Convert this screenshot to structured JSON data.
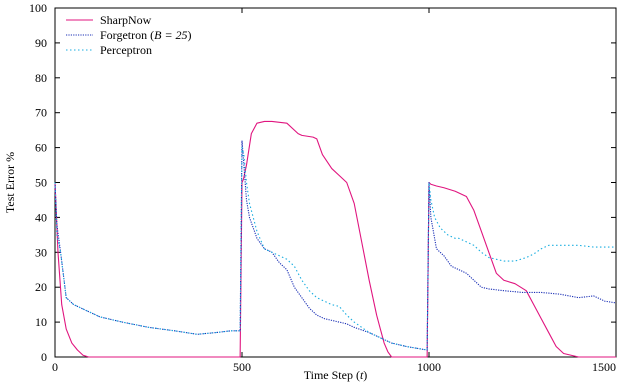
{
  "chart_data": {
    "type": "line",
    "title": "",
    "xlabel_text": "Time Step (",
    "xlabel_var": "t",
    "xlabel_close": ")",
    "ylabel": "Test Error %",
    "xlim": [
      0,
      1500
    ],
    "ylim": [
      0,
      100
    ],
    "x_ticks": [
      0,
      500,
      1000,
      1500
    ],
    "y_ticks": [
      0,
      10,
      20,
      30,
      40,
      50,
      60,
      70,
      80,
      90,
      100
    ],
    "grid": false,
    "legend_position": "top-left",
    "colors": {
      "SharpNow": "#e0157f",
      "Forgetron": "#1a2fb5",
      "Perceptron": "#1aaee0"
    },
    "series": [
      {
        "name": "SharpNow",
        "legend_label": "SharpNow",
        "style": "solid",
        "x": [
          0,
          8,
          18,
          30,
          45,
          60,
          75,
          90,
          150,
          250,
          350,
          450,
          495,
          500,
          504,
          512,
          525,
          540,
          560,
          580,
          620,
          650,
          660,
          690,
          700,
          715,
          740,
          760,
          780,
          800,
          820,
          840,
          860,
          870,
          880,
          890,
          900,
          950,
          995,
          1000,
          1005,
          1020,
          1040,
          1070,
          1080,
          1100,
          1120,
          1140,
          1160,
          1180,
          1200,
          1230,
          1260,
          1280,
          1300,
          1320,
          1340,
          1360,
          1380,
          1400,
          1420,
          1450,
          1500
        ],
        "y": [
          50,
          30,
          15,
          8,
          4,
          2,
          0.5,
          0,
          0,
          0,
          0,
          0,
          0,
          50,
          51,
          55,
          64,
          67,
          67.5,
          67.5,
          67,
          64,
          63.5,
          63,
          62.5,
          58,
          54,
          52,
          50,
          44,
          33,
          22,
          12,
          8,
          4,
          1.5,
          0,
          0,
          0,
          50,
          49.5,
          49,
          48.5,
          47.5,
          47,
          46,
          42,
          36,
          30,
          24,
          22,
          21,
          19,
          15,
          11,
          7,
          3,
          1,
          0.5,
          0,
          0,
          0,
          0
        ]
      },
      {
        "name": "Forgetron",
        "legend_label": "Forgetron (",
        "legend_math": "B = 25",
        "legend_close": ")",
        "style": "dense-dotted",
        "x": [
          0,
          5,
          15,
          30,
          50,
          80,
          120,
          180,
          250,
          320,
          380,
          430,
          470,
          495,
          500,
          505,
          512,
          520,
          540,
          560,
          580,
          600,
          620,
          640,
          660,
          680,
          700,
          720,
          740,
          760,
          780,
          800,
          840,
          880,
          900,
          940,
          995,
          1000,
          1005,
          1020,
          1040,
          1060,
          1080,
          1100,
          1120,
          1140,
          1160,
          1200,
          1250,
          1300,
          1350,
          1400,
          1440,
          1470,
          1500
        ],
        "y": [
          50,
          38,
          30,
          17,
          15,
          13.5,
          11.5,
          10,
          8.5,
          7.5,
          6.5,
          7,
          7.5,
          7.5,
          62,
          55,
          45,
          40,
          34,
          31,
          30,
          27,
          25,
          20,
          17,
          14,
          12,
          11,
          10.5,
          10,
          9.5,
          8.5,
          7,
          5,
          4,
          3,
          2,
          50,
          40,
          31,
          29,
          26,
          25,
          24,
          22,
          20,
          19.5,
          19,
          18.5,
          18.5,
          18,
          17,
          17.5,
          16,
          15.5
        ]
      },
      {
        "name": "Perceptron",
        "legend_label": "Perceptron",
        "style": "dotted",
        "x": [
          0,
          5,
          15,
          30,
          50,
          80,
          120,
          180,
          250,
          320,
          380,
          430,
          470,
          495,
          500,
          505,
          512,
          520,
          540,
          560,
          580,
          600,
          620,
          640,
          660,
          680,
          700,
          720,
          740,
          760,
          780,
          800,
          840,
          880,
          900,
          940,
          995,
          1000,
          1005,
          1015,
          1030,
          1050,
          1070,
          1080,
          1100,
          1120,
          1140,
          1160,
          1180,
          1200,
          1230,
          1260,
          1280,
          1300,
          1320,
          1340,
          1360,
          1400,
          1440,
          1470,
          1500
        ],
        "y": [
          50,
          35,
          30,
          17,
          15,
          13.5,
          11.5,
          10,
          8.5,
          7.5,
          6.5,
          7,
          7.5,
          7.5,
          60,
          58,
          50,
          44,
          36,
          31,
          30,
          29,
          28,
          26,
          22,
          19,
          17,
          16,
          15,
          14.5,
          12,
          10,
          7,
          5,
          4,
          3,
          2,
          50,
          45,
          40,
          37,
          35,
          34,
          34,
          33,
          32,
          30,
          28.5,
          28,
          27.5,
          27.5,
          28.5,
          29.5,
          31,
          32,
          32,
          32,
          32,
          31.5,
          31.5,
          31.5
        ]
      }
    ]
  }
}
